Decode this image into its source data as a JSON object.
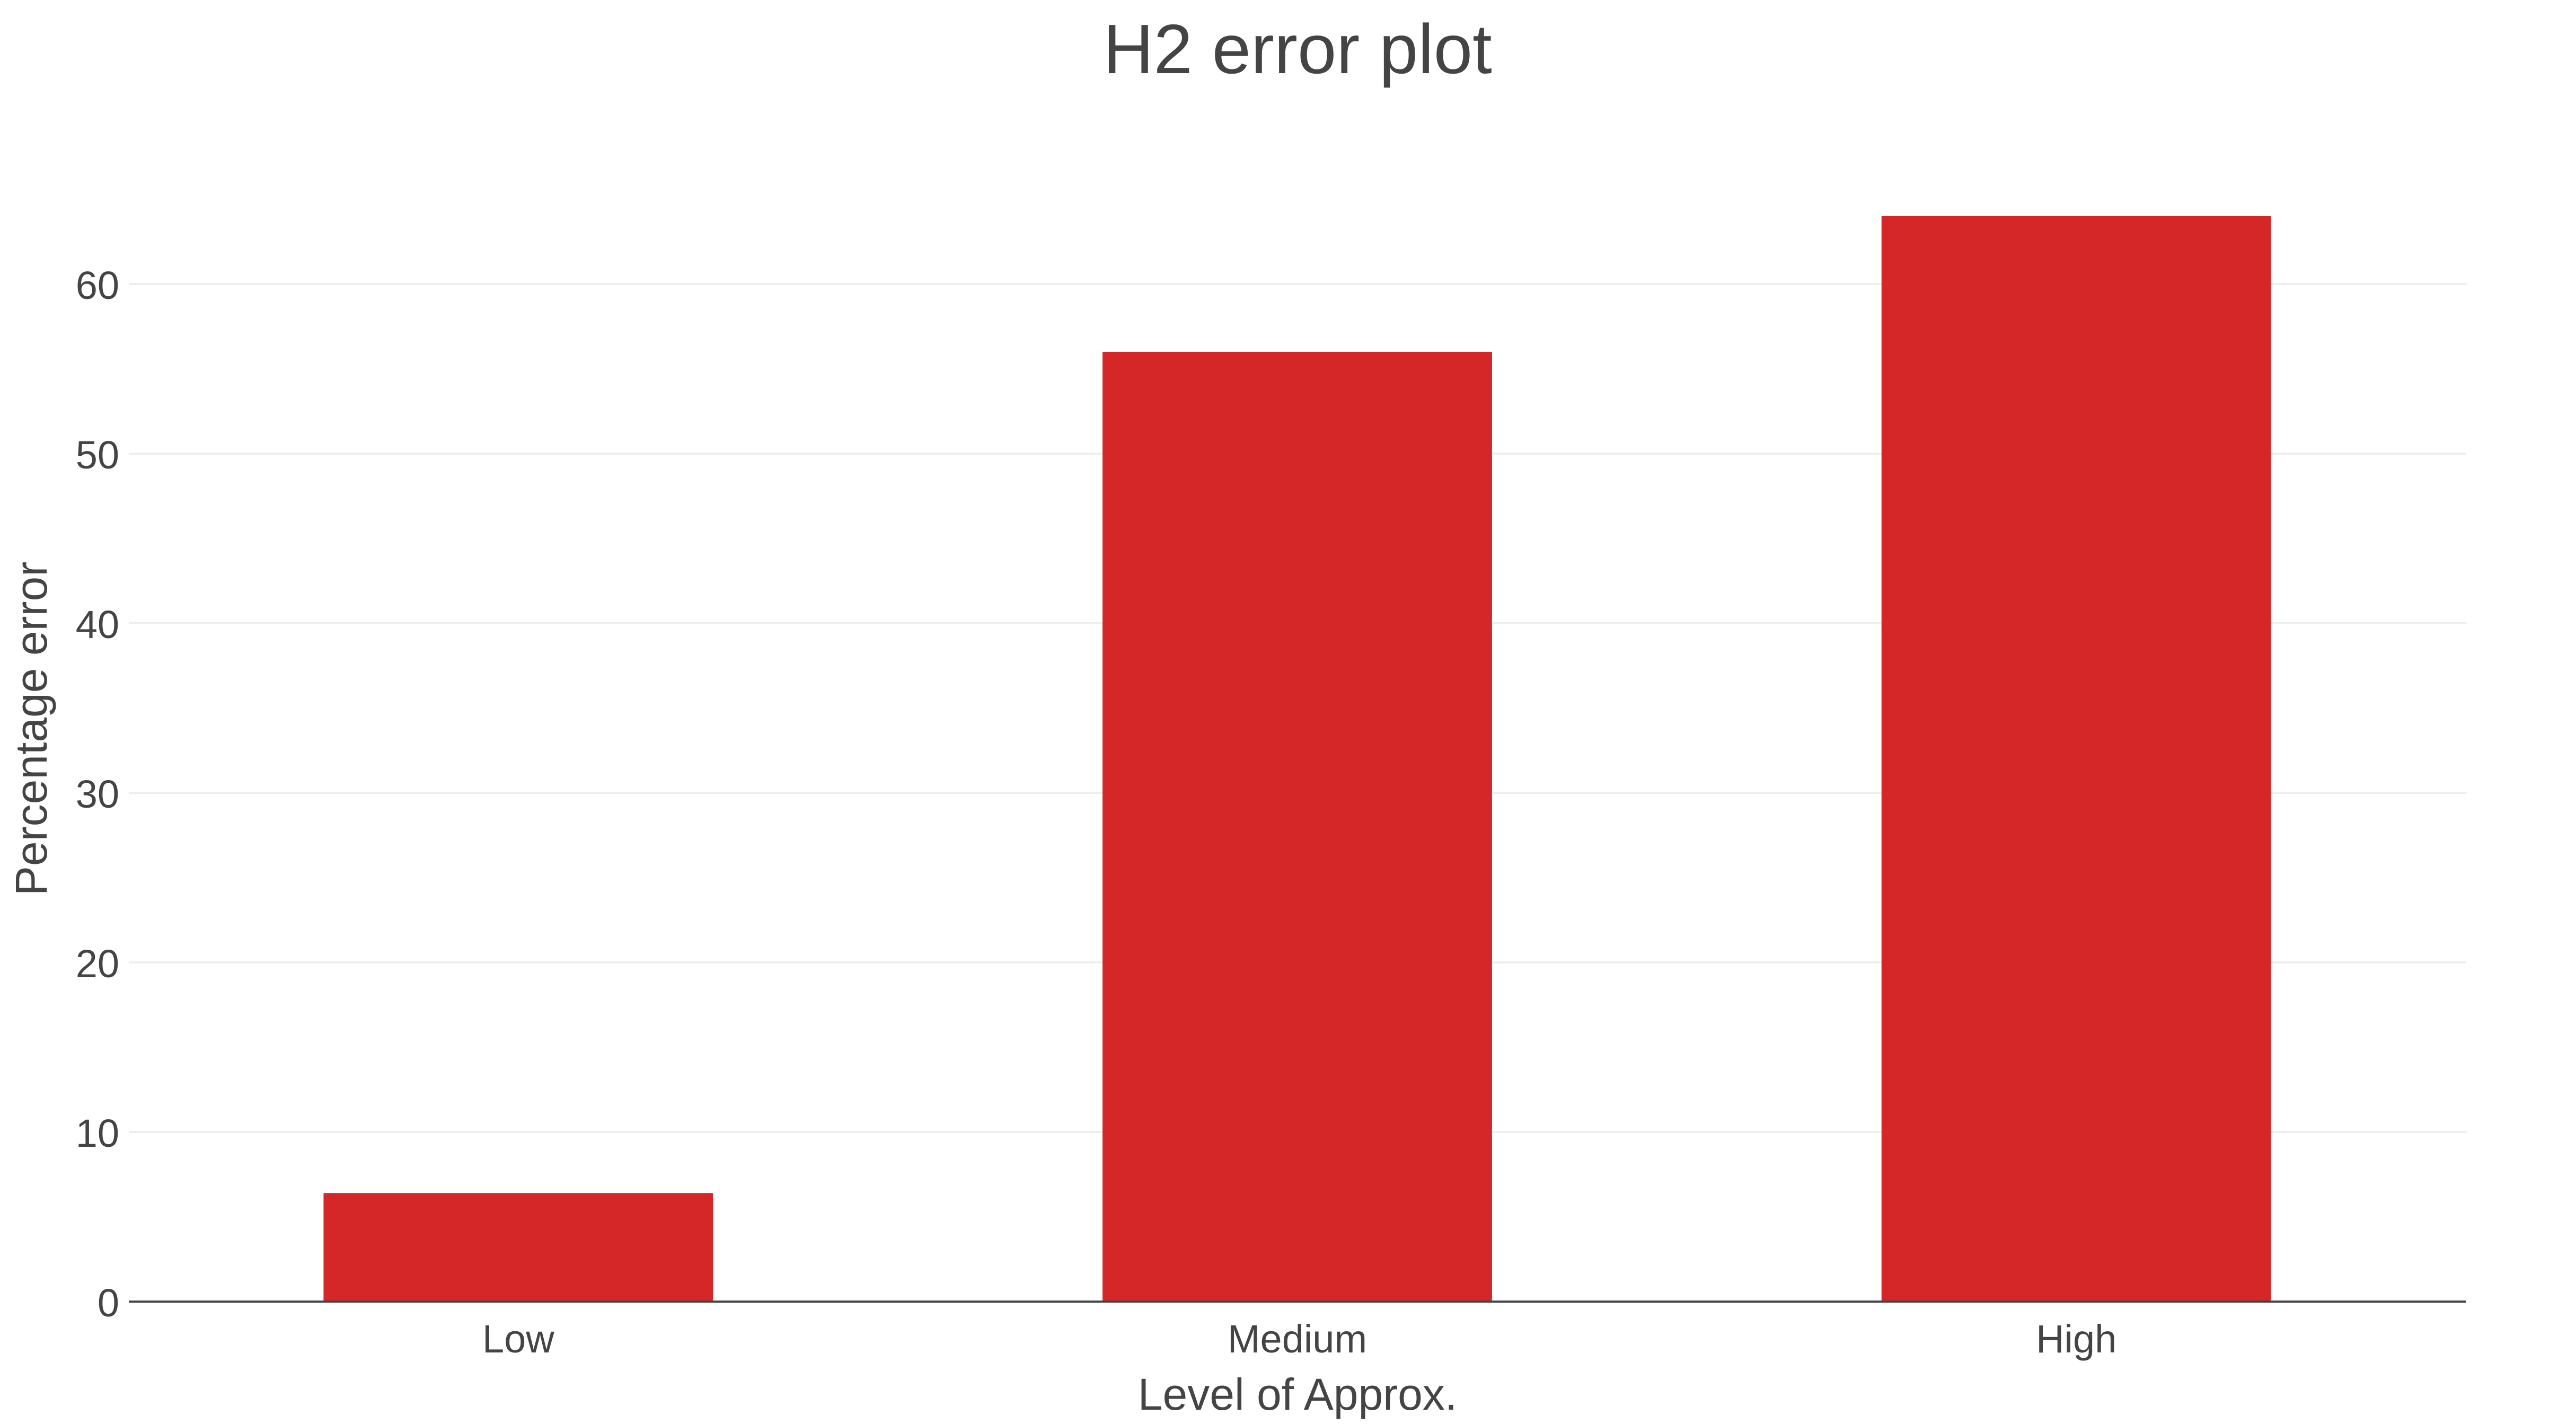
{
  "chart_data": {
    "type": "bar",
    "title": "H2 error plot",
    "xlabel": "Level of Approx.",
    "ylabel": "Percentage error",
    "categories": [
      "Low",
      "Medium",
      "High"
    ],
    "values": [
      6.4,
      56,
      64
    ],
    "ylim": [
      0,
      64
    ],
    "yticks": [
      0,
      10,
      20,
      30,
      40,
      50,
      60
    ],
    "grid": true,
    "legend": "none",
    "colors": {
      "bar": "#D62728",
      "grid": "#EEEEEE",
      "axis_line": "#444444",
      "text": "#444444"
    }
  }
}
